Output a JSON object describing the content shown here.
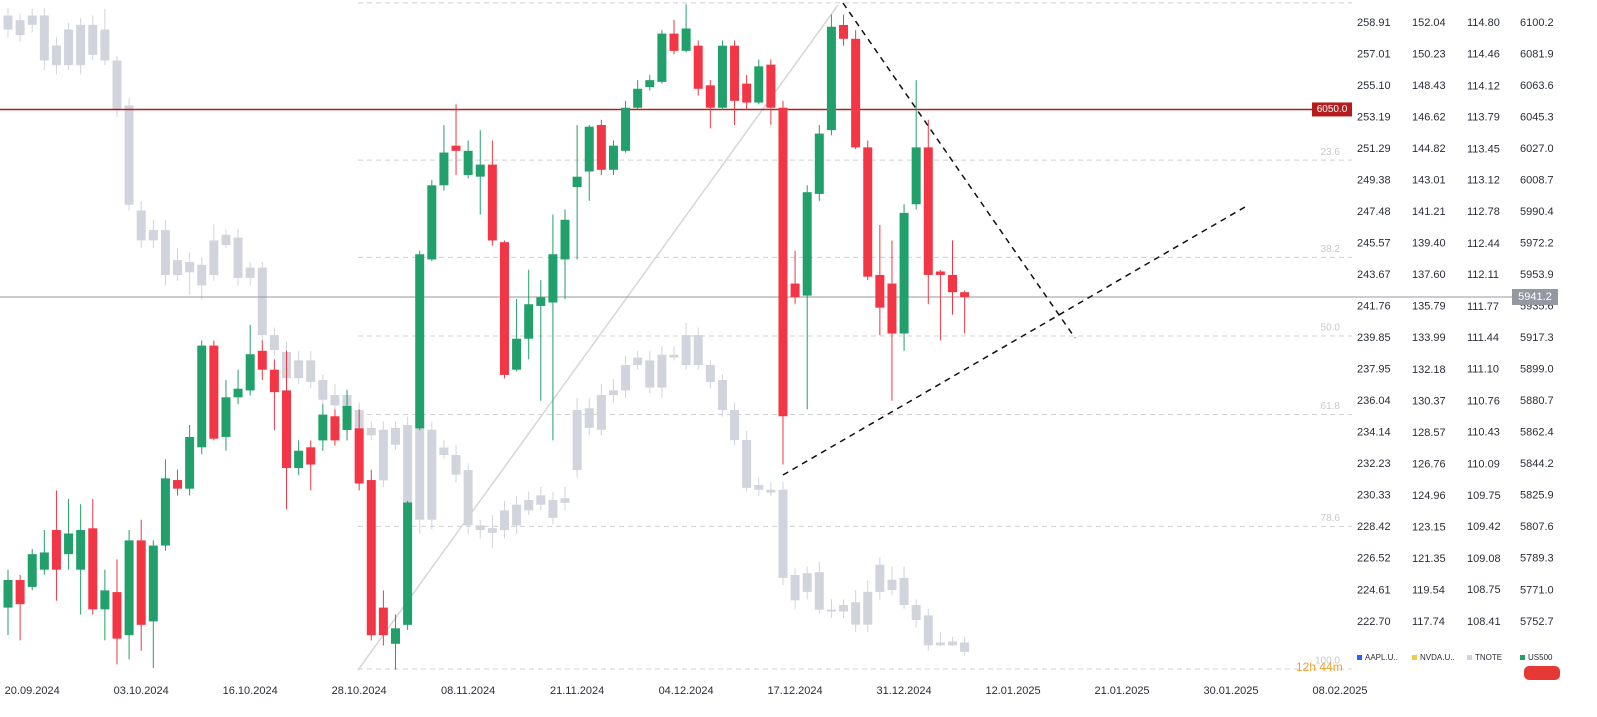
{
  "chart_data": {
    "type": "candlestick",
    "categories": [
      null,
      null,
      "20.09.2024",
      null,
      null,
      null,
      null,
      null,
      null,
      null,
      null,
      "03.10.2024",
      null,
      null,
      null,
      null,
      null,
      null,
      null,
      null,
      "16.10.2024",
      null,
      null,
      null,
      null,
      null,
      null,
      null,
      null,
      "28.10.2024",
      null,
      null,
      null,
      null,
      null,
      null,
      null,
      null,
      "08.11.2024",
      null,
      null,
      null,
      null,
      null,
      null,
      null,
      null,
      "21.11.2024",
      null,
      null,
      null,
      null,
      null,
      null,
      null,
      null,
      "04.12.2024",
      null,
      null,
      null,
      null,
      null,
      null,
      null,
      null,
      "17.12.2024",
      null,
      null,
      null,
      null,
      null,
      null,
      null,
      null,
      "31.12.2024",
      null,
      null,
      null,
      null,
      null,
      null,
      null,
      null,
      "12.01.2025",
      null,
      null,
      null,
      null,
      null,
      null,
      null,
      null,
      "21.01.2025",
      null,
      null,
      null,
      null,
      null,
      null,
      null,
      null,
      "30.01.2025",
      null,
      null,
      null,
      null,
      null,
      null,
      null,
      null,
      "08.02.2025"
    ],
    "axes": [
      {
        "name": "AAPL.U..",
        "color": "#2962ff",
        "ylim": [
          219.19,
          260.3
        ],
        "yticks": [
          258.91,
          257.01,
          {
            "value": 255.1,
            "label": "255.10"
          },
          253.19,
          251.29,
          249.38,
          247.48,
          245.57,
          243.67,
          241.76,
          239.85,
          237.95,
          236.04,
          234.14,
          232.23,
          230.33,
          228.42,
          226.52,
          224.61,
          {
            "value": 222.7,
            "label": "222.70"
          }
        ]
      },
      {
        "name": "NVDA.U..",
        "color": "#f7c948",
        "ylim": [
          114.42,
          153.36
        ],
        "yticks": [
          152.04,
          150.23,
          148.43,
          146.62,
          144.82,
          143.01,
          141.21,
          {
            "value": 139.4,
            "label": "139.40"
          },
          {
            "value": 137.6,
            "label": "137.60"
          },
          135.79,
          133.99,
          132.18,
          130.37,
          128.57,
          126.76,
          124.96,
          123.15,
          121.35,
          119.54,
          117.74
        ]
      },
      {
        "name": "TNOTE",
        "color": "#d1d4dc",
        "ylim": [
          107.79,
          115.045
        ],
        "yticks": [
          {
            "value": 114.8,
            "label": "114.80"
          },
          114.46,
          114.12,
          113.79,
          113.45,
          113.12,
          112.78,
          112.44,
          112.11,
          111.77,
          111.44,
          {
            "value": 111.1,
            "label": "111.10"
          },
          110.76,
          110.43,
          110.09,
          109.75,
          109.42,
          109.08,
          108.75,
          108.41
        ]
      },
      {
        "name": "US500",
        "color": "#22a06b",
        "ylim": [
          5719.0,
          6113.5
        ],
        "yticks": [
          6100.2,
          6081.9,
          6063.6,
          6045.3,
          {
            "value": 6027,
            "label": "6027.0"
          },
          6008.7,
          5990.4,
          5972.2,
          5953.9,
          5935.6,
          5917.3,
          {
            "value": 5899,
            "label": "5899.0"
          },
          5880.7,
          5862.4,
          5844.2,
          5825.9,
          5807.6,
          5789.3,
          {
            "value": 5771,
            "label": "5771.0"
          },
          5752.7
        ]
      }
    ],
    "series": [
      {
        "name": "US500",
        "axis": 3,
        "up_color": "#22a06b",
        "down_color": "#f23645",
        "open": [
          5761,
          5777,
          5773,
          5783,
          5806,
          5792,
          5783,
          5807,
          5760,
          5770,
          5745,
          5800,
          5753,
          5797,
          5835,
          5830,
          5854,
          5913,
          5860,
          5883,
          5887,
          5910,
          5899,
          5887,
          5842,
          5854,
          5858,
          5872,
          5864,
          5865,
          5835,
          5761,
          5740,
          5751,
          5865,
          5963,
          6006,
          6029,
          6012,
          6011,
          6018,
          5973,
          5899,
          5917,
          5936,
          5938,
          5963,
          6005,
          6014,
          6041,
          6015,
          6026,
          6051,
          6063,
          6066,
          6094,
          6084,
          6087,
          6064,
          6051,
          6087,
          6065,
          6054,
          6076,
          6051,
          5949,
          5942,
          6001,
          6038,
          6099,
          6091,
          6028,
          5954,
          5949,
          5920,
          5995,
          6028,
          5956,
          5954,
          5944
        ],
        "high": [
          5783,
          5780,
          5795,
          5806,
          5829,
          5824,
          5821,
          5824,
          5783,
          5789,
          5806,
          5812,
          5800,
          5847,
          5841,
          5867,
          5916,
          5916,
          5893,
          5899,
          5925,
          5916,
          5905,
          5910,
          5858,
          5858,
          5879,
          5876,
          5887,
          5876,
          5841,
          5771,
          5757,
          5823,
          5968,
          6009,
          6041,
          6053,
          6032,
          6038,
          6032,
          5974,
          5940,
          5957,
          5951,
          5989,
          5992,
          6041,
          6041,
          6044,
          6032,
          6055,
          6067,
          6070,
          6096,
          6102,
          6111,
          6090,
          6067,
          6090,
          6090,
          6070,
          6079,
          6079,
          6055,
          5968,
          6006,
          6041,
          6105,
          6105,
          6096,
          6032,
          5983,
          5974,
          5995,
          6067,
          6044,
          5957,
          5974,
          5945
        ],
        "low": [
          5745,
          5742,
          5771,
          5780,
          5765,
          5783,
          5757,
          5757,
          5742,
          5728,
          5731,
          5736,
          5726,
          5794,
          5826,
          5826,
          5850,
          5858,
          5852,
          5879,
          5884,
          5893,
          5864,
          5818,
          5838,
          5829,
          5852,
          5855,
          5858,
          5829,
          5742,
          5739,
          5725,
          5748,
          5864,
          5962,
          6003,
          6012,
          6010,
          5989,
          5971,
          5894,
          5898,
          5905,
          5881,
          5858,
          5940,
          5963,
          5997,
          6012,
          6012,
          6025,
          6050,
          6061,
          6065,
          6082,
          6083,
          6058,
          6039,
          6050,
          6041,
          6050,
          6053,
          6041,
          5844,
          5937,
          5876,
          5997,
          6035,
          6087,
          6027,
          5951,
          5919,
          5881,
          5910,
          5992,
          5937,
          5916,
          5931,
          5920
        ],
        "close": [
          5777,
          5763,
          5792,
          5793,
          5783,
          5804,
          5806,
          5760,
          5771,
          5743,
          5800,
          5751,
          5797,
          5836,
          5830,
          5860,
          5913,
          5859,
          5883,
          5888,
          5908,
          5899,
          5886,
          5842,
          5852,
          5844,
          5873,
          5858,
          5878,
          5833,
          5745,
          5745,
          5749,
          5822,
          5966,
          6006,
          6025,
          6026,
          6026,
          6018,
          5974,
          5896,
          5917,
          5937,
          5941,
          5966,
          5986,
          6011,
          6040,
          6015,
          6029,
          6051,
          6062,
          6067,
          6094,
          6084,
          6097,
          6062,
          6051,
          6087,
          6055,
          6054,
          6075,
          6051,
          5872,
          5941,
          6002,
          6036,
          6098,
          6091,
          6028,
          5953,
          5935,
          5920,
          5990,
          6028,
          5954,
          5954,
          5944,
          5941.2
        ]
      },
      {
        "name": "TNOTE",
        "axis": 2,
        "up_color": "#d1d4dc",
        "down_color": "#d1d4dc",
        "open": [
          114.88,
          114.83,
          114.88,
          114.88,
          114.56,
          114.35,
          114.35,
          114.78,
          114.73,
          114.4,
          113.92,
          112.8,
          112.59,
          112.59,
          112.27,
          112.14,
          112.0,
          112.11,
          112.43,
          112.51,
          112.08,
          112.19,
          111.47,
          111.29,
          111.01,
          111.2,
          110.99,
          110.83,
          110.67,
          110.67,
          110.48,
          110.46,
          110.3,
          109.5,
          109.5,
          110.46,
          110.27,
          110.19,
          110.03,
          109.44,
          109.41,
          109.39,
          109.44,
          109.6,
          109.66,
          109.52,
          109.68,
          110.03,
          110.48,
          110.46,
          110.83,
          110.88,
          111.15,
          110.91,
          110.91,
          111.26,
          111.15,
          111.47,
          111.15,
          110.99,
          110.67,
          110.35,
          109.87,
          109.82,
          109.82,
          108.91,
          108.93,
          108.94,
          108.54,
          108.52,
          108.62,
          108.38,
          108.73,
          108.75,
          108.88,
          108.59,
          108.48,
          108.19,
          108.2,
          108.19
        ],
        "high": [
          114.96,
          114.9,
          114.95,
          114.96,
          114.65,
          114.8,
          114.85,
          114.88,
          114.95,
          114.45,
          114.0,
          112.9,
          112.7,
          112.7,
          112.4,
          112.35,
          112.3,
          112.65,
          112.6,
          112.6,
          112.25,
          112.25,
          111.55,
          111.4,
          111.3,
          111.3,
          111.05,
          110.95,
          110.9,
          110.75,
          110.55,
          110.55,
          110.55,
          110.6,
          110.6,
          110.55,
          110.35,
          110.3,
          110.1,
          109.5,
          109.55,
          109.7,
          109.75,
          109.8,
          109.85,
          109.8,
          109.85,
          110.8,
          110.8,
          110.95,
          111.0,
          111.25,
          111.3,
          111.3,
          111.35,
          111.35,
          111.6,
          111.55,
          111.2,
          111.05,
          110.75,
          110.45,
          109.95,
          109.9,
          109.9,
          108.98,
          109.0,
          109.05,
          108.65,
          108.65,
          108.75,
          108.85,
          109.1,
          109.0,
          109.0,
          108.65,
          108.55,
          108.3,
          108.25,
          108.25
        ],
        "low": [
          114.64,
          114.6,
          114.7,
          114.3,
          114.25,
          114.3,
          114.25,
          114.4,
          114.35,
          113.8,
          112.8,
          112.4,
          112.4,
          112.0,
          112.05,
          111.9,
          111.85,
          112.05,
          112.4,
          112.0,
          112.0,
          111.4,
          111.25,
          110.9,
          110.95,
          110.9,
          110.7,
          110.65,
          110.55,
          110.4,
          110.35,
          109.85,
          110.25,
          109.4,
          109.35,
          109.4,
          110.15,
          109.9,
          109.35,
          109.3,
          109.2,
          109.3,
          109.35,
          109.55,
          109.6,
          109.45,
          109.6,
          109.95,
          110.4,
          110.4,
          110.75,
          110.8,
          111.1,
          110.85,
          110.8,
          111.2,
          111.1,
          111.1,
          110.9,
          110.6,
          110.3,
          109.8,
          109.75,
          109.75,
          108.8,
          108.55,
          108.65,
          108.5,
          108.45,
          108.45,
          108.3,
          108.3,
          108.65,
          108.7,
          108.55,
          108.35,
          108.1,
          108.15,
          108.15,
          108.05
        ],
        "close": [
          114.73,
          114.67,
          114.78,
          114.4,
          114.35,
          114.73,
          114.78,
          114.46,
          114.4,
          113.87,
          112.86,
          112.48,
          112.48,
          112.11,
          112.11,
          112.25,
          112.22,
          112.48,
          112.54,
          112.08,
          112.19,
          111.47,
          111.31,
          111.01,
          111.2,
          110.97,
          110.78,
          110.72,
          110.83,
          110.46,
          110.4,
          109.92,
          110.48,
          110.51,
          110.48,
          109.5,
          110.19,
          109.98,
          109.44,
          109.39,
          109.36,
          109.6,
          109.66,
          109.71,
          109.76,
          109.71,
          109.73,
          110.67,
          110.69,
          110.83,
          110.88,
          111.15,
          111.23,
          111.2,
          111.26,
          111.23,
          111.47,
          111.15,
          110.97,
          110.67,
          110.35,
          109.84,
          109.82,
          109.79,
          108.88,
          108.64,
          108.73,
          108.54,
          108.52,
          108.59,
          108.38,
          108.73,
          109.02,
          108.86,
          108.59,
          108.43,
          108.16,
          108.16,
          108.16,
          108.09
        ]
      }
    ],
    "alert_line": {
      "value": 6050,
      "label": "6050.0",
      "color": "#b71c1c"
    },
    "price_line": {
      "value": 5941.2,
      "color": "#9598a1"
    },
    "fib": {
      "high": 6111.8,
      "low": 5725.4,
      "levels": [
        0,
        23.6,
        38.2,
        {
          "value": 50,
          "label": "50.0"
        },
        61.8,
        78.6,
        {
          "value": 100,
          "label": "100.0"
        }
      ]
    },
    "countdown": "12h 44m"
  }
}
